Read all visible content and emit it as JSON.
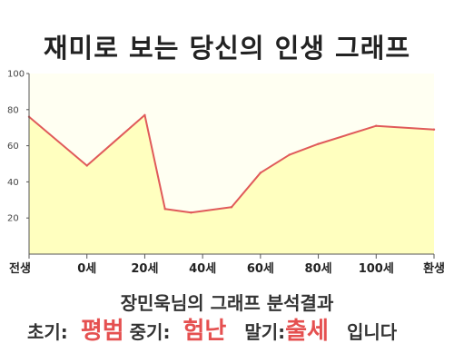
{
  "title": "재미로 보는 당신의 인생 그래프",
  "chart_data": {
    "type": "area",
    "x_ticks": [
      "전생",
      "0세",
      "20세",
      "40세",
      "60세",
      "80세",
      "100세",
      "환생"
    ],
    "y_ticks": [
      20,
      40,
      60,
      80,
      100
    ],
    "ylim": [
      0,
      100
    ],
    "grid": false,
    "points": [
      {
        "x": "전생",
        "y": 76
      },
      {
        "x": "0세",
        "y": 49
      },
      {
        "x": "20세",
        "y": 77
      },
      {
        "x": "27세",
        "y": 25
      },
      {
        "x": "36세",
        "y": 23
      },
      {
        "x": "50세",
        "y": 26
      },
      {
        "x": "60세",
        "y": 45
      },
      {
        "x": "70세",
        "y": 55
      },
      {
        "x": "80세",
        "y": 61
      },
      {
        "x": "100세",
        "y": 71
      },
      {
        "x": "환생",
        "y": 69
      }
    ],
    "colors": {
      "line": "#e05a5a",
      "fill": "#ffffbf",
      "plot_bg": "#fffff2"
    }
  },
  "result": {
    "heading": "장민욱님의 그래프 분석결과",
    "early_label": "초기:",
    "early_value": "평범",
    "middle_label": "중기:",
    "middle_value": "험난",
    "late_label": "말기:",
    "late_value": "출세",
    "ending": "입니다"
  }
}
